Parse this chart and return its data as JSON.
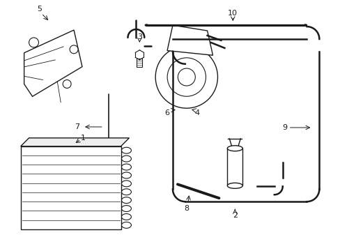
{
  "background_color": "#ffffff",
  "line_color": "#1a1a1a",
  "fig_width": 4.89,
  "fig_height": 3.6,
  "dpi": 100,
  "lw": 1.0,
  "thin_lw": 0.6,
  "tube_lw": 1.5
}
